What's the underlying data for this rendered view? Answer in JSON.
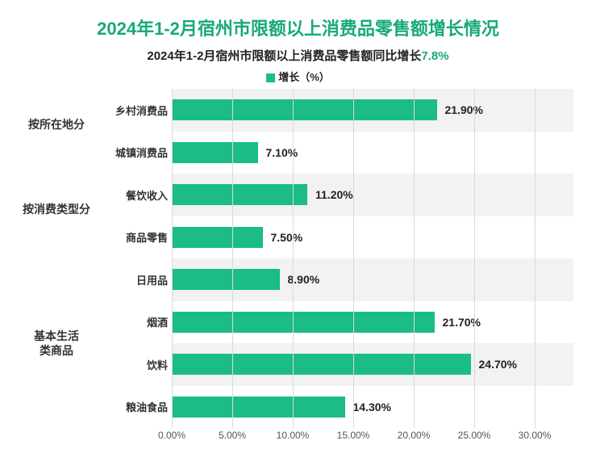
{
  "chart": {
    "type": "bar-horizontal-grouped",
    "title": "2024年1-2月宿州市限额以上消费品零售额增长情况",
    "title_color": "#17a97a",
    "title_fontsize": 22,
    "subtitle_prefix": "2024年1-2月宿州市限额以上消费品零售额同比增长",
    "subtitle_value": "7.8%",
    "subtitle_fontsize": 15,
    "subtitle_color": "#222222",
    "subtitle_highlight_color": "#17a97a",
    "legend_label": "增长（%）",
    "legend_color": "#1bbc87",
    "background_color": "#ffffff",
    "row_alt_color": "#f2f2f2",
    "bar_color": "#1bbc87",
    "gridline_color": "#d9d9d9",
    "value_label_color": "#222222",
    "axis_label_color": "#555555",
    "xaxis": {
      "min": 0.0,
      "max": 30.0,
      "ticks": [
        0.0,
        5.0,
        10.0,
        15.0,
        20.0,
        25.0,
        30.0
      ],
      "tick_labels": [
        "0.00%",
        "5.00%",
        "10.00%",
        "15.00%",
        "20.00%",
        "25.00%",
        "30.00%"
      ]
    },
    "groups": [
      {
        "label": "按所在地分",
        "rows": [
          {
            "label": "乡村消费品",
            "value": 21.9,
            "value_label": "21.90%"
          },
          {
            "label": "城镇消费品",
            "value": 7.1,
            "value_label": "7.10%"
          }
        ]
      },
      {
        "label": "按消费类型分",
        "rows": [
          {
            "label": "餐饮收入",
            "value": 11.2,
            "value_label": "11.20%"
          },
          {
            "label": "商品零售",
            "value": 7.5,
            "value_label": "7.50%"
          }
        ]
      },
      {
        "label": "基本生活\n类商品",
        "rows": [
          {
            "label": "日用品",
            "value": 8.9,
            "value_label": "8.90%"
          },
          {
            "label": "烟酒",
            "value": 21.7,
            "value_label": "21.70%"
          },
          {
            "label": "饮料",
            "value": 24.7,
            "value_label": "24.70%"
          },
          {
            "label": "粮油食品",
            "value": 14.3,
            "value_label": "14.30%"
          }
        ]
      }
    ]
  }
}
